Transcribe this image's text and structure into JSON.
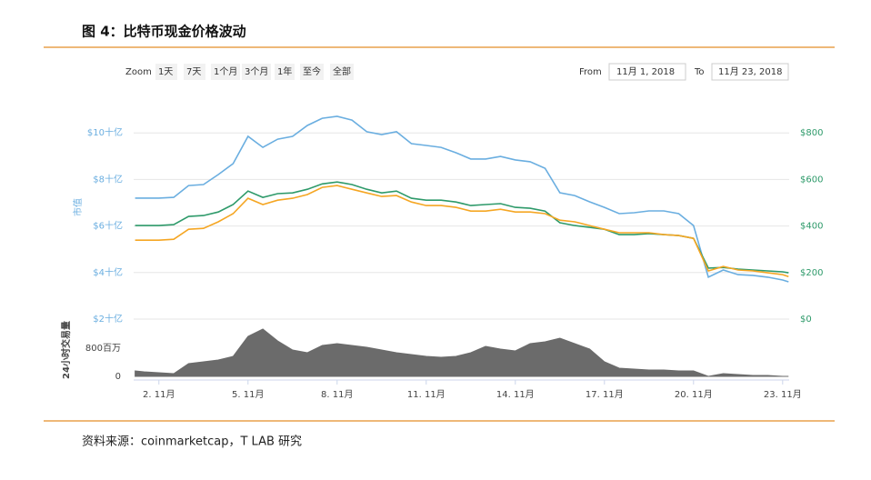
{
  "header": {
    "title": "图 4：比特币现金价格波动"
  },
  "controls": {
    "zoom_label": "Zoom",
    "zoom_options": [
      "1天",
      "7天",
      "1个月",
      "3个月",
      "1年",
      "至今",
      "全部"
    ],
    "from_label": "From",
    "from": "11月 1, 2018",
    "to_label": "To",
    "to": "11月 23, 2018"
  },
  "source": "资料来源：coinmarketcap，T LAB 研究",
  "chart_data": [
    {
      "type": "line",
      "ylabel": "市值",
      "x": [
        1.2,
        1.5,
        2,
        2.5,
        3,
        3.5,
        4,
        4.5,
        5,
        5.5,
        6,
        6.5,
        7,
        7.5,
        8,
        8.5,
        9,
        9.5,
        10,
        10.5,
        11,
        11.5,
        12,
        12.5,
        13,
        13.5,
        14,
        14.5,
        15,
        15.5,
        16,
        16.5,
        17,
        17.5,
        18,
        18.5,
        19,
        19.5,
        20,
        20.5,
        21,
        21.5,
        22,
        22.5,
        23,
        23.2
      ],
      "xlim": [
        1.15,
        23.22
      ],
      "ylim": [
        2,
        11
      ],
      "yticks": [
        {
          "value": 2,
          "label": "$2十亿"
        },
        {
          "value": 4,
          "label": "$4十亿"
        },
        {
          "value": 6,
          "label": "$6十亿"
        },
        {
          "value": 8,
          "label": "$8十亿"
        },
        {
          "value": 10,
          "label": "$10十亿"
        }
      ],
      "y2lim": [
        0,
        900
      ],
      "y2ticks": [
        {
          "value": 0,
          "label": "$0"
        },
        {
          "value": 200,
          "label": "$200"
        },
        {
          "value": 400,
          "label": "$400"
        },
        {
          "value": 600,
          "label": "$600"
        },
        {
          "value": 800,
          "label": "$800"
        }
      ],
      "grid": true,
      "series": [
        {
          "color": "#6aaee0",
          "values": [
            7.2,
            7.2,
            7.2,
            7.23,
            7.74,
            7.78,
            8.21,
            8.68,
            9.85,
            9.38,
            9.73,
            9.85,
            10.32,
            10.63,
            10.71,
            10.55,
            10.05,
            9.93,
            10.05,
            9.54,
            9.46,
            9.38,
            9.15,
            8.88,
            8.88,
            8.99,
            8.84,
            8.76,
            8.48,
            7.43,
            7.31,
            7.04,
            6.8,
            6.53,
            6.57,
            6.65,
            6.65,
            6.53,
            6.02,
            3.8,
            4.11,
            3.91,
            3.88,
            3.8,
            3.68,
            3.6
          ]
        },
        {
          "color": "#2e9a6a",
          "axis": "y2",
          "values": [
            402,
            402,
            402,
            406,
            441,
            445,
            460,
            492,
            550,
            523,
            539,
            542,
            558,
            581,
            589,
            578,
            558,
            542,
            550,
            519,
            511,
            511,
            503,
            488,
            492,
            496,
            480,
            476,
            464,
            414,
            402,
            394,
            386,
            363,
            363,
            367,
            363,
            359,
            347,
            219,
            222,
            215,
            211,
            207,
            203,
            199
          ]
        },
        {
          "color": "#f5a623",
          "axis": "y2",
          "values": [
            339,
            339,
            339,
            343,
            386,
            390,
            418,
            453,
            519,
            492,
            511,
            519,
            535,
            566,
            574,
            558,
            542,
            527,
            531,
            503,
            488,
            488,
            480,
            464,
            464,
            472,
            460,
            460,
            453,
            425,
            418,
            402,
            386,
            371,
            371,
            371,
            363,
            359,
            347,
            207,
            226,
            211,
            207,
            199,
            191,
            183
          ]
        }
      ]
    },
    {
      "type": "area",
      "ylabel": "24小时交易量",
      "color": "#6b6b6b",
      "x": [
        1.2,
        1.5,
        2,
        2.5,
        3,
        3.5,
        4,
        4.5,
        5,
        5.5,
        6,
        6.5,
        7,
        7.5,
        8,
        8.5,
        9,
        9.5,
        10,
        10.5,
        11,
        11.5,
        12,
        12.5,
        13,
        13.5,
        14,
        14.5,
        15,
        15.5,
        16,
        16.5,
        17,
        17.5,
        18,
        18.5,
        19,
        19.5,
        20,
        20.5,
        21,
        21.5,
        22,
        22.5,
        23,
        23.2
      ],
      "values": [
        155,
        129,
        103,
        77,
        361,
        413,
        465,
        568,
        1135,
        1342,
        1006,
        748,
        671,
        877,
        929,
        877,
        826,
        748,
        671,
        619,
        568,
        542,
        568,
        671,
        852,
        774,
        723,
        929,
        981,
        1084,
        929,
        774,
        413,
        232,
        206,
        181,
        181,
        155,
        155,
        0,
        77,
        52,
        26,
        26,
        0,
        0
      ],
      "xlim": [
        1.15,
        23.22
      ],
      "xticks": [
        {
          "value": 2,
          "label": "2. 11月"
        },
        {
          "value": 5,
          "label": "5. 11月"
        },
        {
          "value": 8,
          "label": "8. 11月"
        },
        {
          "value": 11,
          "label": "11. 11月"
        },
        {
          "value": 14,
          "label": "14. 11月"
        },
        {
          "value": 17,
          "label": "17. 11月"
        },
        {
          "value": 20,
          "label": "20. 11月"
        },
        {
          "value": 23,
          "label": "23. 11月"
        }
      ],
      "ylim": [
        0,
        1450
      ],
      "yticks": [
        0,
        {
          "value": 800,
          "label": "800百万"
        }
      ]
    }
  ]
}
